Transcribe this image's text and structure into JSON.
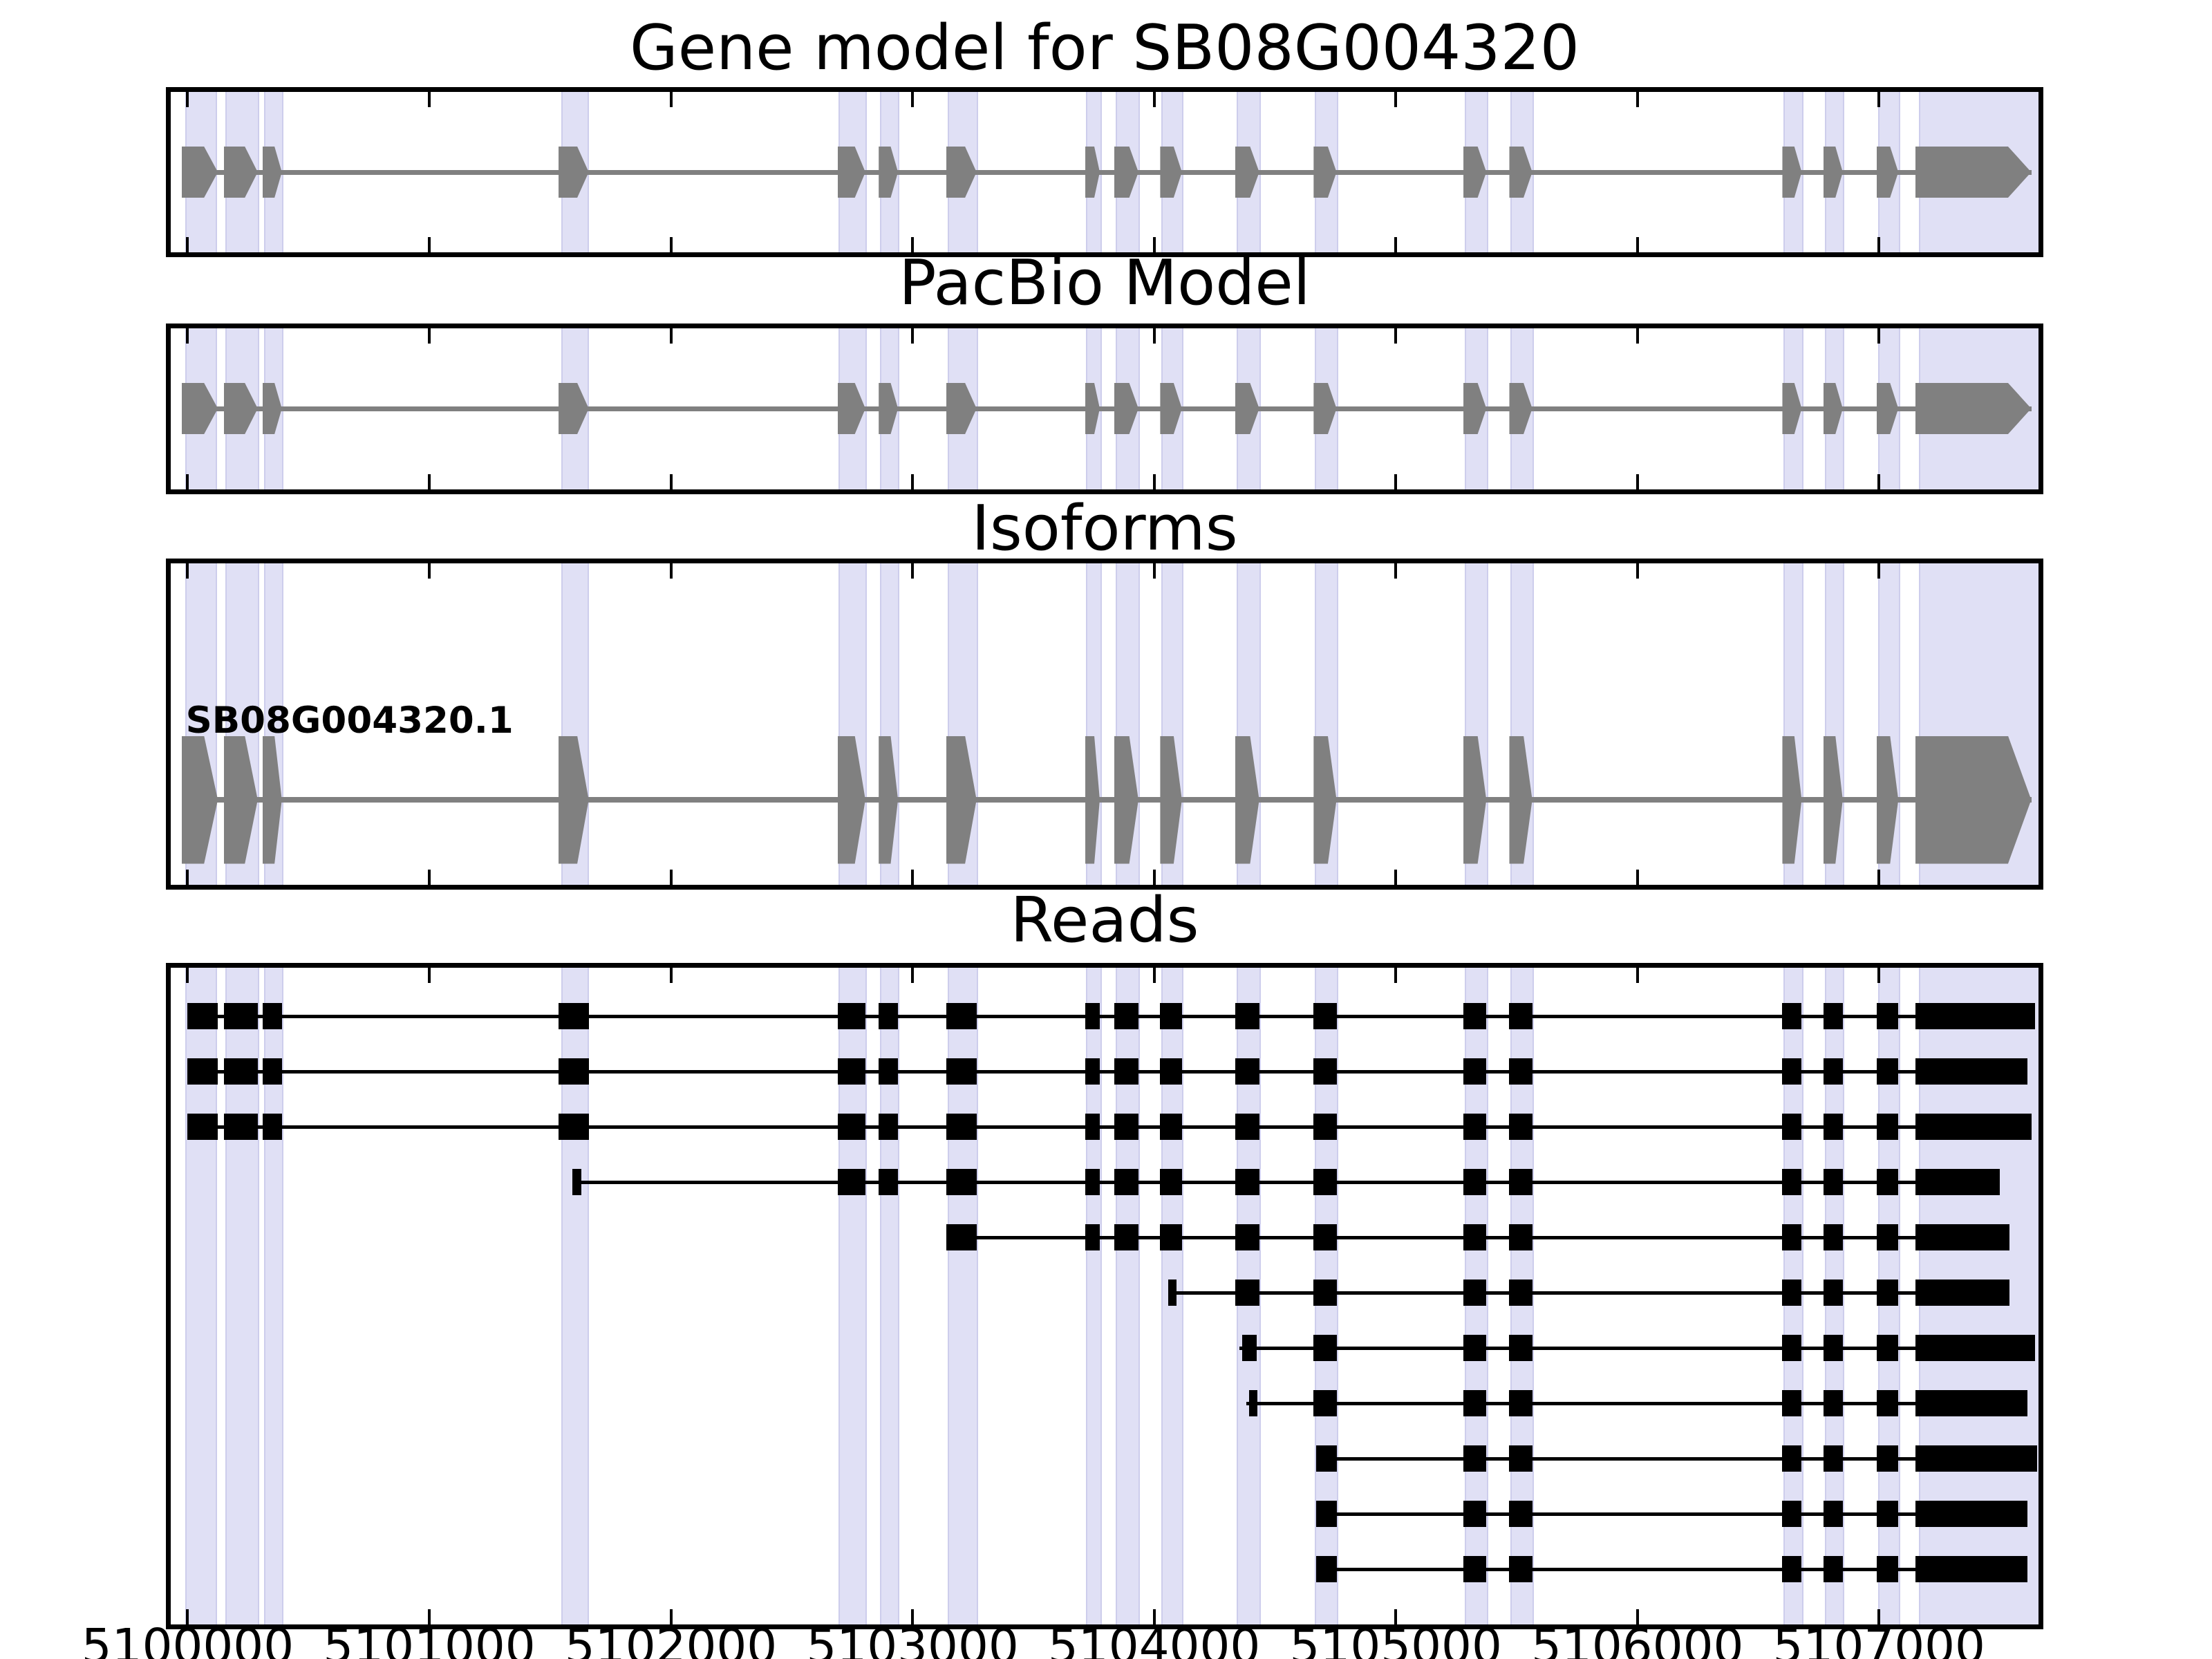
{
  "chart_data": {
    "type": "genomic-tracks",
    "title": "Gene model for SB08G004320",
    "xlabel": "",
    "ylabel": "",
    "legend": "none",
    "grid": false,
    "strand": "+",
    "x_axis": {
      "start": 5099930,
      "end": 5107660,
      "tick_interval": 1000,
      "ticks": [
        {
          "pos": 5100000,
          "label": "5100000"
        },
        {
          "pos": 5101000,
          "label": "5101000"
        },
        {
          "pos": 5102000,
          "label": "5102000"
        },
        {
          "pos": 5103000,
          "label": "5103000"
        },
        {
          "pos": 5104000,
          "label": "5104000"
        },
        {
          "pos": 5105000,
          "label": "5105000"
        },
        {
          "pos": 5106000,
          "label": "5106000"
        },
        {
          "pos": 5107000,
          "label": "5107000"
        }
      ]
    },
    "gene_exons": [
      [
        5099975,
        5100125
      ],
      [
        5100150,
        5100290
      ],
      [
        5100310,
        5100390
      ],
      [
        5101535,
        5101660
      ],
      [
        5102690,
        5102805
      ],
      [
        5102860,
        5102940
      ],
      [
        5103140,
        5103265
      ],
      [
        5103715,
        5103775
      ],
      [
        5103835,
        5103935
      ],
      [
        5104025,
        5104115
      ],
      [
        5104335,
        5104435
      ],
      [
        5104660,
        5104755
      ],
      [
        5105280,
        5105375
      ],
      [
        5105470,
        5105565
      ],
      [
        5106600,
        5106680
      ],
      [
        5106770,
        5106850
      ],
      [
        5106990,
        5107080
      ],
      [
        5107150,
        5107630
      ]
    ],
    "highlight_bands": [
      [
        5099990,
        5100110
      ],
      [
        5100155,
        5100285
      ],
      [
        5100315,
        5100385
      ],
      [
        5101545,
        5101650
      ],
      [
        5102695,
        5102800
      ],
      [
        5102865,
        5102935
      ],
      [
        5103145,
        5103260
      ],
      [
        5103718,
        5103772
      ],
      [
        5103840,
        5103930
      ],
      [
        5104030,
        5104110
      ],
      [
        5104340,
        5104430
      ],
      [
        5104665,
        5104750
      ],
      [
        5105285,
        5105370
      ],
      [
        5105475,
        5105560
      ],
      [
        5106605,
        5106675
      ],
      [
        5106775,
        5106845
      ],
      [
        5106995,
        5107075
      ],
      [
        5107165,
        5107660
      ]
    ],
    "tracks": [
      {
        "name": "Gene model for SB08G004320",
        "kind": "model"
      },
      {
        "name": "PacBio Model",
        "kind": "model"
      },
      {
        "name": "Isoforms",
        "kind": "isoform",
        "isoforms": [
          {
            "label": "SB08G004320.1"
          }
        ]
      },
      {
        "name": "Reads",
        "kind": "reads",
        "reads": [
          {
            "start_exon": null,
            "from_exon": 0,
            "first_start": 5100000,
            "end": 5107645,
            "line": [
              5100000,
              5107645
            ]
          },
          {
            "start_exon": null,
            "from_exon": 0,
            "first_start": 5100000,
            "end": 5107615,
            "line": [
              5100000,
              5107615
            ]
          },
          {
            "start_exon": null,
            "from_exon": 0,
            "first_start": 5100000,
            "end": 5107630,
            "line": [
              5100000,
              5107630
            ]
          },
          {
            "start_exon": [
              5101593,
              5101628
            ],
            "from_exon": 4,
            "first_start": null,
            "end": 5107500,
            "line": [
              5101593,
              5107500
            ]
          },
          {
            "start_exon": null,
            "from_exon": 6,
            "first_start": null,
            "end": 5107540,
            "line": [
              5103140,
              5107540
            ]
          },
          {
            "start_exon": [
              5104058,
              5104093
            ],
            "from_exon": 10,
            "first_start": null,
            "end": 5107540,
            "line": [
              5104058,
              5107540
            ]
          },
          {
            "start_exon": [
              5104365,
              5104425
            ],
            "from_exon": 11,
            "first_start": null,
            "end": 5107645,
            "line": [
              5104352,
              5107645
            ]
          },
          {
            "start_exon": [
              5104394,
              5104426
            ],
            "from_exon": 11,
            "first_start": null,
            "end": 5107615,
            "line": [
              5104382,
              5107615
            ]
          },
          {
            "start_exon": null,
            "from_exon": 11,
            "first_start": 5104670,
            "end": 5107655,
            "line": [
              5104670,
              5107655
            ]
          },
          {
            "start_exon": null,
            "from_exon": 11,
            "first_start": 5104670,
            "end": 5107615,
            "line": [
              5104670,
              5107615
            ]
          },
          {
            "start_exon": null,
            "from_exon": 11,
            "first_start": 5104670,
            "end": 5107615,
            "line": [
              5104670,
              5107615
            ]
          }
        ]
      }
    ],
    "colors": {
      "model": "#808080",
      "reads": "#000000",
      "band_fill": "#e0e0f5",
      "band_edge": "#cdcdec",
      "frame": "#000000"
    }
  }
}
